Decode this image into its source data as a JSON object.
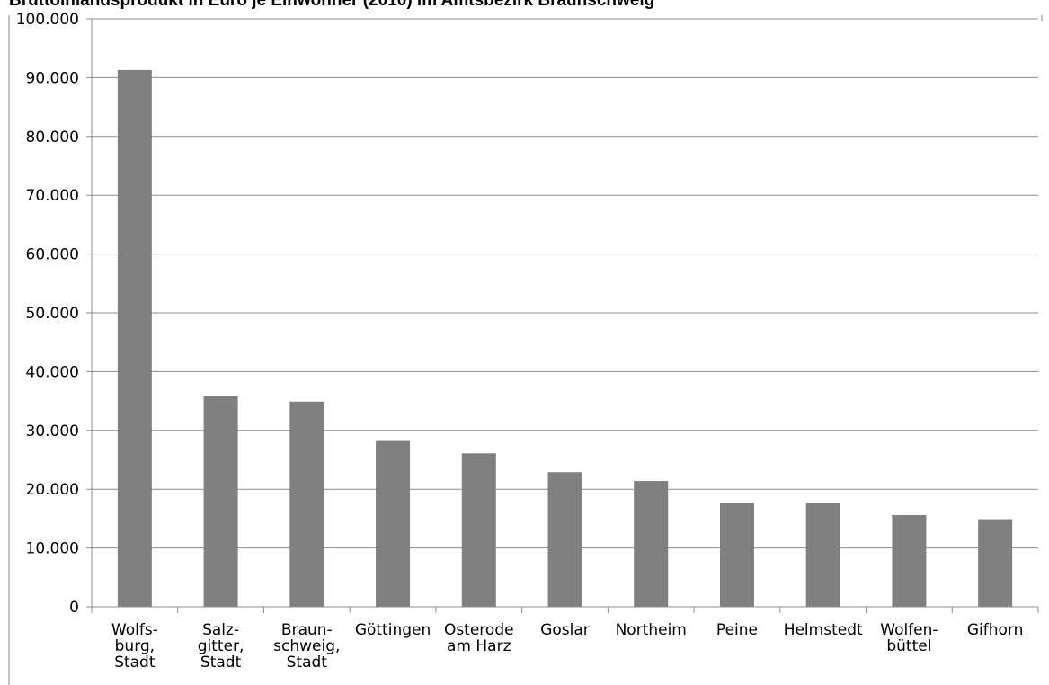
{
  "chart_data": {
    "type": "bar",
    "title": "Bruttoinlandsprodukt in Euro je Einwohner (2010) im Amtsbezirk Braunschweig",
    "xlabel": "",
    "ylabel": "",
    "ylim": [
      0,
      100000
    ],
    "yticks": [
      0,
      10000,
      20000,
      30000,
      40000,
      50000,
      60000,
      70000,
      80000,
      90000,
      100000
    ],
    "ytick_labels": [
      "0",
      "10.000",
      "20.000",
      "30.000",
      "40.000",
      "50.000",
      "60.000",
      "70.000",
      "80.000",
      "90.000",
      "100.000"
    ],
    "grid": true,
    "legend": "none",
    "bar_color": "#808080",
    "categories": [
      [
        "Wolfs-",
        "burg,",
        "Stadt"
      ],
      [
        "Salz-",
        "gitter,",
        "Stadt"
      ],
      [
        "Braun-",
        "schweig,",
        "Stadt"
      ],
      [
        "Göttingen"
      ],
      [
        "Osterode",
        "am Harz"
      ],
      [
        "Goslar"
      ],
      [
        "Northeim"
      ],
      [
        "Peine"
      ],
      [
        "Helmstedt"
      ],
      [
        "Wolfen-",
        "büttel"
      ],
      [
        "Gifhorn"
      ]
    ],
    "values": [
      91300,
      35800,
      34900,
      28200,
      26100,
      22900,
      21400,
      17600,
      17600,
      15600,
      14900
    ]
  }
}
